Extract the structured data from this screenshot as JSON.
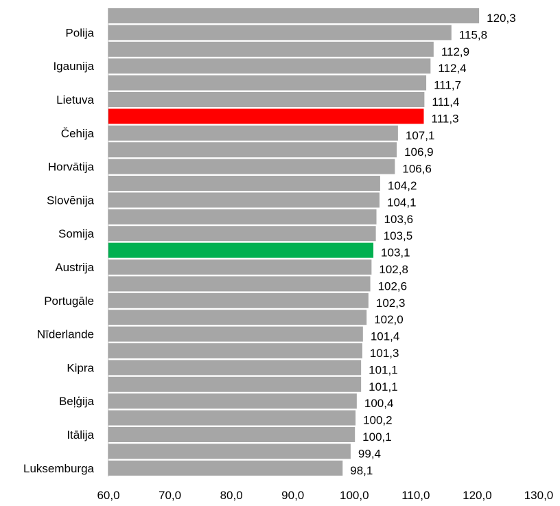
{
  "chart_data": {
    "type": "bar",
    "orientation": "horizontal",
    "categories": [
      "",
      "Polija",
      "",
      "Igaunija",
      "",
      "Lietuva",
      "",
      "Čehija",
      "",
      "Horvātija",
      "",
      "Slovēnija",
      "",
      "Somija",
      "",
      "Austrija",
      "",
      "Portugāle",
      "",
      "Nīderlande",
      "",
      "Kipra",
      "",
      "Beļģija",
      "",
      "Itālija",
      "",
      "Luksemburga"
    ],
    "values": [
      120.3,
      115.8,
      112.9,
      112.4,
      111.7,
      111.4,
      111.3,
      107.1,
      106.9,
      106.6,
      104.2,
      104.1,
      103.6,
      103.5,
      103.1,
      102.8,
      102.6,
      102.3,
      102.0,
      101.4,
      101.3,
      101.1,
      101.1,
      100.4,
      100.2,
      100.1,
      99.4,
      98.1
    ],
    "value_labels": [
      "120,3",
      "115,8",
      "112,9",
      "112,4",
      "111,7",
      "111,4",
      "111,3",
      "107,1",
      "106,9",
      "106,6",
      "104,2",
      "104,1",
      "103,6",
      "103,5",
      "103,1",
      "102,8",
      "102,6",
      "102,3",
      "102,0",
      "101,4",
      "101,3",
      "101,1",
      "101,1",
      "100,4",
      "100,2",
      "100,1",
      "99,4",
      "98,1"
    ],
    "highlight": {
      "6": "#ff0000",
      "14": "#00b050"
    },
    "default_color": "#a6a6a6",
    "xlim": [
      60,
      130
    ],
    "x_ticks": [
      60,
      70,
      80,
      90,
      100,
      110,
      120,
      130
    ],
    "x_tick_labels": [
      "60,0",
      "70,0",
      "80,0",
      "90,0",
      "100,0",
      "110,0",
      "120,0",
      "130,0"
    ],
    "grid": false,
    "legend": "none"
  }
}
